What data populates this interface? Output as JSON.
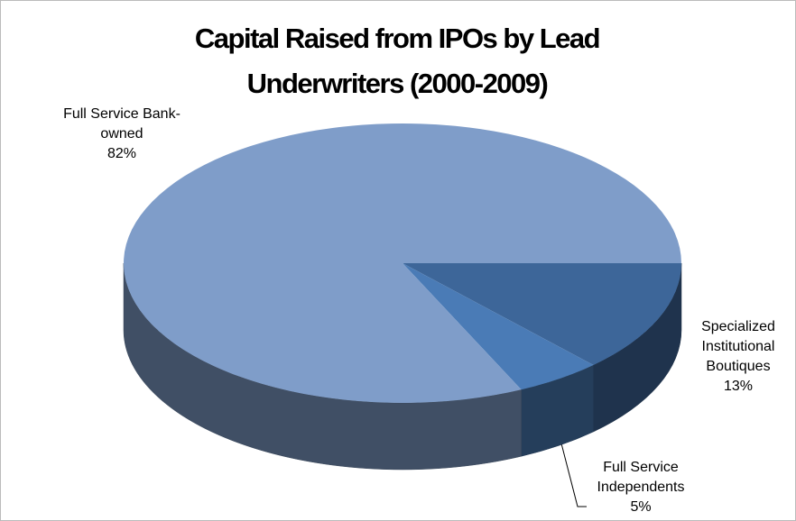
{
  "chart_data": {
    "type": "pie",
    "title": "Capital Raised from IPOs by Lead Underwriters (2000-2009)",
    "categories": [
      "Specialized Institutional Boutiques",
      "Full Service Independents",
      "Full Service Bank-owned"
    ],
    "values": [
      13,
      5,
      82
    ],
    "value_labels": [
      "13%",
      "5%",
      "82%"
    ],
    "colors": [
      "#3d6699",
      "#4a7bb6",
      "#7f9dc9"
    ]
  }
}
